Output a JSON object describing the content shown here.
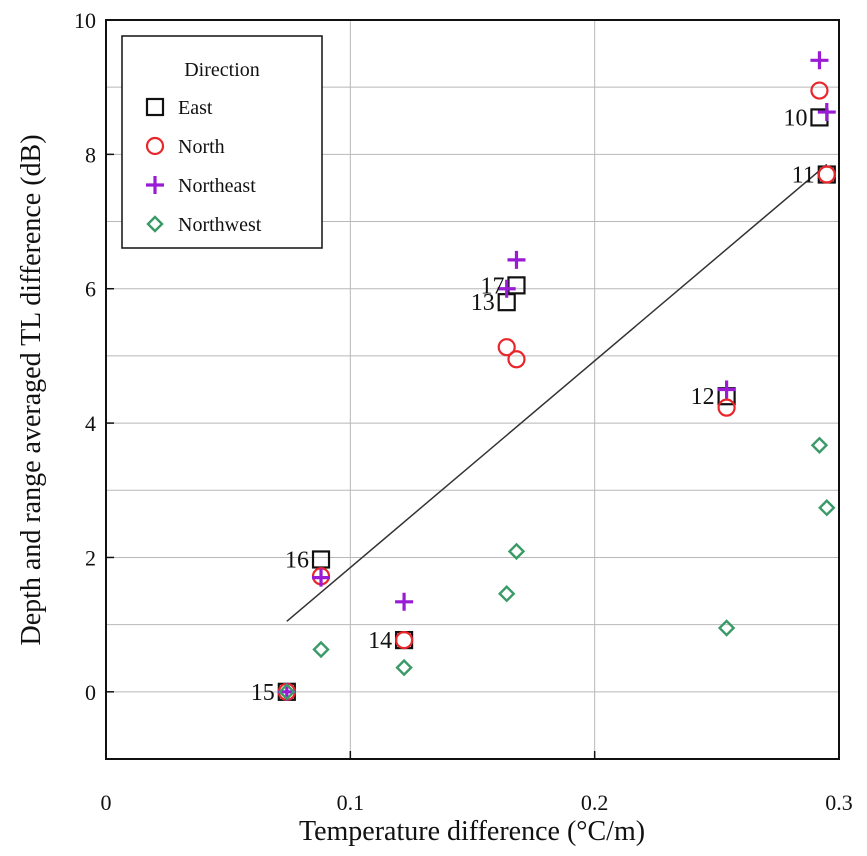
{
  "chart_data": {
    "type": "scatter",
    "xlabel": "Temperature difference (°C/m)",
    "ylabel": "Depth and range averaged TL difference (dB)",
    "xlim": [
      0,
      0.3
    ],
    "ylim": [
      -1,
      10
    ],
    "xticks": [
      0,
      0.1,
      0.2,
      0.3
    ],
    "xtick_labels": [
      "0",
      "0.1",
      "0.2",
      "0.3"
    ],
    "yticks": [
      0,
      2,
      4,
      6,
      8,
      10
    ],
    "ytick_labels": [
      "0",
      "2",
      "4",
      "6",
      "8",
      "10"
    ],
    "grid": true,
    "legend": {
      "title": "Direction",
      "position": "top-left",
      "entries": [
        "East",
        "North",
        "Northeast",
        "Northwest"
      ]
    },
    "series": [
      {
        "name": "East",
        "marker": "square",
        "color": "#111111",
        "points": [
          {
            "x": 0.074,
            "y": 0.0
          },
          {
            "x": 0.088,
            "y": 1.97
          },
          {
            "x": 0.122,
            "y": 0.77
          },
          {
            "x": 0.164,
            "y": 5.8
          },
          {
            "x": 0.168,
            "y": 6.05
          },
          {
            "x": 0.254,
            "y": 4.4
          },
          {
            "x": 0.292,
            "y": 8.55
          },
          {
            "x": 0.295,
            "y": 7.7
          }
        ]
      },
      {
        "name": "North",
        "marker": "circle",
        "color": "#e8262b",
        "points": [
          {
            "x": 0.074,
            "y": 0.0
          },
          {
            "x": 0.088,
            "y": 1.72
          },
          {
            "x": 0.122,
            "y": 0.77
          },
          {
            "x": 0.164,
            "y": 5.13
          },
          {
            "x": 0.168,
            "y": 4.95
          },
          {
            "x": 0.254,
            "y": 4.23
          },
          {
            "x": 0.292,
            "y": 8.95
          },
          {
            "x": 0.295,
            "y": 7.7
          }
        ]
      },
      {
        "name": "Northeast",
        "marker": "plus",
        "color": "#9a1bd6",
        "points": [
          {
            "x": 0.074,
            "y": 0.0
          },
          {
            "x": 0.088,
            "y": 1.7
          },
          {
            "x": 0.122,
            "y": 1.34
          },
          {
            "x": 0.164,
            "y": 6.0
          },
          {
            "x": 0.168,
            "y": 6.43
          },
          {
            "x": 0.254,
            "y": 4.5
          },
          {
            "x": 0.292,
            "y": 9.4
          },
          {
            "x": 0.295,
            "y": 8.63
          }
        ]
      },
      {
        "name": "Northwest",
        "marker": "diamond",
        "color": "#3a9a68",
        "points": [
          {
            "x": 0.074,
            "y": 0.0
          },
          {
            "x": 0.088,
            "y": 0.63
          },
          {
            "x": 0.122,
            "y": 0.36
          },
          {
            "x": 0.164,
            "y": 1.46
          },
          {
            "x": 0.168,
            "y": 2.09
          },
          {
            "x": 0.254,
            "y": 0.95
          },
          {
            "x": 0.292,
            "y": 3.67
          },
          {
            "x": 0.295,
            "y": 2.74
          }
        ]
      }
    ],
    "fit_line": {
      "x1": 0.074,
      "y1": 1.05,
      "x2": 0.295,
      "y2": 7.85,
      "color": "#333333"
    },
    "annotations": [
      {
        "text": "15",
        "x": 0.074,
        "y": 0.0,
        "anchor": "left"
      },
      {
        "text": "16",
        "x": 0.088,
        "y": 1.97,
        "anchor": "left"
      },
      {
        "text": "14",
        "x": 0.122,
        "y": 0.77,
        "anchor": "left"
      },
      {
        "text": "13",
        "x": 0.164,
        "y": 5.8,
        "anchor": "left"
      },
      {
        "text": "17",
        "x": 0.168,
        "y": 6.05,
        "anchor": "left"
      },
      {
        "text": "12",
        "x": 0.254,
        "y": 4.4,
        "anchor": "left"
      },
      {
        "text": "10",
        "x": 0.292,
        "y": 8.55,
        "anchor": "left"
      },
      {
        "text": "11",
        "x": 0.295,
        "y": 7.7,
        "anchor": "left"
      }
    ]
  }
}
